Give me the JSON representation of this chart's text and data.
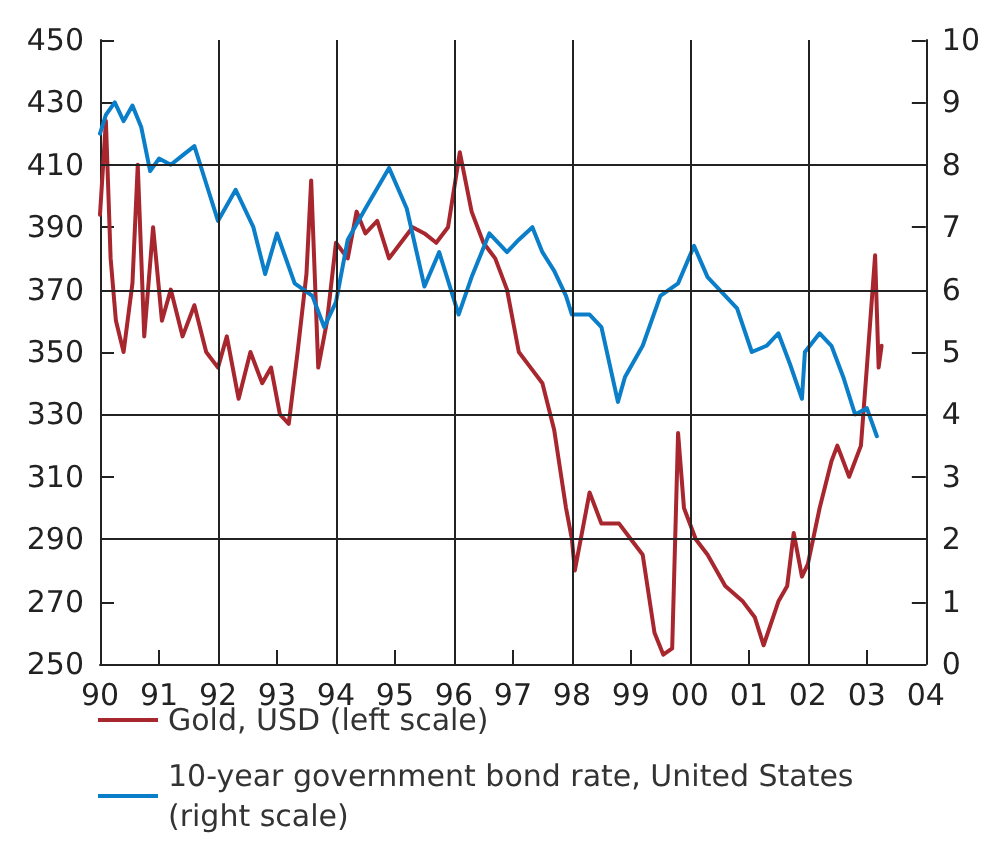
{
  "chart_data": {
    "type": "line",
    "xlim": [
      1990,
      2004
    ],
    "xticks": [
      {
        "value": 1990,
        "label": "90"
      },
      {
        "value": 1991,
        "label": "91"
      },
      {
        "value": 1992,
        "label": "92"
      },
      {
        "value": 1993,
        "label": "93"
      },
      {
        "value": 1994,
        "label": "94"
      },
      {
        "value": 1995,
        "label": "95"
      },
      {
        "value": 1996,
        "label": "96"
      },
      {
        "value": 1997,
        "label": "97"
      },
      {
        "value": 1998,
        "label": "98"
      },
      {
        "value": 1999,
        "label": "99"
      },
      {
        "value": 2000,
        "label": "00"
      },
      {
        "value": 2001,
        "label": "01"
      },
      {
        "value": 2002,
        "label": "02"
      },
      {
        "value": 2003,
        "label": "03"
      },
      {
        "value": 2004,
        "label": "04"
      }
    ],
    "ylim": [
      250,
      450
    ],
    "yticks": [
      250,
      270,
      290,
      310,
      330,
      350,
      370,
      390,
      410,
      430,
      450
    ],
    "y2lim": [
      0,
      10
    ],
    "y2ticks": [
      0,
      1,
      2,
      3,
      4,
      5,
      6,
      7,
      8,
      9,
      10
    ],
    "grid": true,
    "legend": "bottom left",
    "marker": "none",
    "series": [
      {
        "name": "Gold, USD (left scale)",
        "color": "#a8262e",
        "x": [
          1990.0,
          1990.1,
          1990.18,
          1990.27,
          1990.4,
          1990.55,
          1990.64,
          1990.75,
          1990.9,
          1991.05,
          1991.2,
          1991.4,
          1991.6,
          1991.8,
          1992.0,
          1992.15,
          1992.35,
          1992.55,
          1992.75,
          1992.9,
          1993.05,
          1993.2,
          1993.35,
          1993.5,
          1993.58,
          1993.7,
          1993.85,
          1994.0,
          1994.2,
          1994.35,
          1994.5,
          1994.7,
          1994.9,
          1995.1,
          1995.3,
          1995.5,
          1995.7,
          1995.9,
          1996.1,
          1996.3,
          1996.5,
          1996.7,
          1996.9,
          1997.1,
          1997.3,
          1997.5,
          1997.7,
          1997.9,
          1998.0,
          1998.05,
          1998.3,
          1998.5,
          1998.8,
          1999.0,
          1999.2,
          1999.4,
          1999.55,
          1999.7,
          1999.8,
          1999.9,
          2000.1,
          2000.3,
          2000.6,
          2000.9,
          2001.1,
          2001.25,
          2001.5,
          2001.65,
          2001.76,
          2001.9,
          2002.0,
          2002.2,
          2002.4,
          2002.5,
          2002.7,
          2002.9,
          2003.0,
          2003.14,
          2003.2,
          2003.25
        ],
        "values": [
          394,
          424,
          380,
          360,
          350,
          372,
          410,
          355,
          390,
          360,
          370,
          355,
          365,
          350,
          345,
          355,
          335,
          350,
          340,
          345,
          330,
          327,
          350,
          375,
          405,
          345,
          360,
          385,
          380,
          395,
          388,
          392,
          380,
          385,
          390,
          388,
          385,
          390,
          414,
          395,
          385,
          380,
          370,
          350,
          345,
          340,
          325,
          300,
          290,
          280,
          305,
          295,
          295,
          290,
          285,
          260,
          253,
          255,
          324,
          300,
          290,
          285,
          275,
          270,
          265,
          256,
          270,
          275,
          292,
          278,
          282,
          300,
          315,
          320,
          310,
          320,
          345,
          381,
          345,
          352
        ]
      },
      {
        "name": "10-year government bond rate, United States (right scale)",
        "color": "#0a7ec8",
        "axis": "y2",
        "x": [
          1990.0,
          1990.1,
          1990.25,
          1990.4,
          1990.55,
          1990.7,
          1990.85,
          1991.0,
          1991.2,
          1991.4,
          1991.6,
          1991.8,
          1992.0,
          1992.3,
          1992.6,
          1992.8,
          1993.0,
          1993.3,
          1993.6,
          1993.8,
          1994.0,
          1994.2,
          1994.5,
          1994.9,
          1995.2,
          1995.5,
          1995.75,
          1996.08,
          1996.3,
          1996.6,
          1996.9,
          1997.1,
          1997.33,
          1997.5,
          1997.7,
          1997.9,
          1998.0,
          1998.3,
          1998.5,
          1998.78,
          1998.9,
          1999.2,
          1999.5,
          1999.8,
          2000.07,
          2000.3,
          2000.5,
          2000.8,
          2001.05,
          2001.3,
          2001.5,
          2001.7,
          2001.9,
          2001.95,
          2002.2,
          2002.4,
          2002.6,
          2002.8,
          2003.0,
          2003.17
        ],
        "values": [
          8.5,
          8.8,
          9.0,
          8.7,
          8.95,
          8.6,
          7.9,
          8.1,
          8.0,
          8.15,
          8.3,
          7.7,
          7.1,
          7.6,
          7.0,
          6.25,
          6.9,
          6.1,
          5.9,
          5.4,
          5.8,
          6.8,
          7.3,
          7.95,
          7.3,
          6.05,
          6.6,
          5.6,
          6.2,
          6.9,
          6.6,
          6.8,
          7.0,
          6.6,
          6.3,
          5.9,
          5.6,
          5.6,
          5.4,
          4.2,
          4.6,
          5.1,
          5.9,
          6.1,
          6.7,
          6.2,
          6.0,
          5.7,
          5.0,
          5.1,
          5.3,
          4.8,
          4.25,
          5.0,
          5.3,
          5.1,
          4.6,
          4.0,
          4.1,
          3.65
        ]
      }
    ]
  }
}
